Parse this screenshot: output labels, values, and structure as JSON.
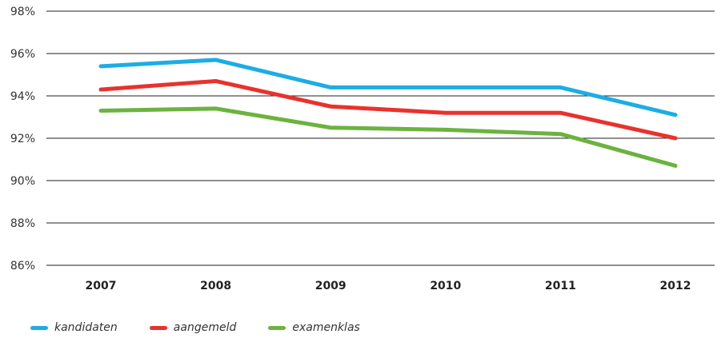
{
  "chart_data": {
    "type": "line",
    "categories": [
      "2007",
      "2008",
      "2009",
      "2010",
      "2011",
      "2012"
    ],
    "ylim": [
      86,
      98
    ],
    "yticks": [
      "98%",
      "96%",
      "94%",
      "92%",
      "90%",
      "88%",
      "86%"
    ],
    "ytick_values": [
      98,
      96,
      94,
      92,
      90,
      88,
      86
    ],
    "grid": true,
    "legend_position": "bottom-left",
    "series": [
      {
        "name": "kandidaten",
        "color": "#1CADE4",
        "values": [
          95.4,
          95.7,
          94.4,
          94.4,
          94.4,
          93.1
        ]
      },
      {
        "name": "aangemeld",
        "color": "#E8322D",
        "values": [
          94.3,
          94.7,
          93.5,
          93.2,
          93.2,
          92.0
        ]
      },
      {
        "name": "examenklas",
        "color": "#6BB33F",
        "values": [
          93.3,
          93.4,
          92.5,
          92.4,
          92.2,
          90.7
        ]
      }
    ]
  }
}
